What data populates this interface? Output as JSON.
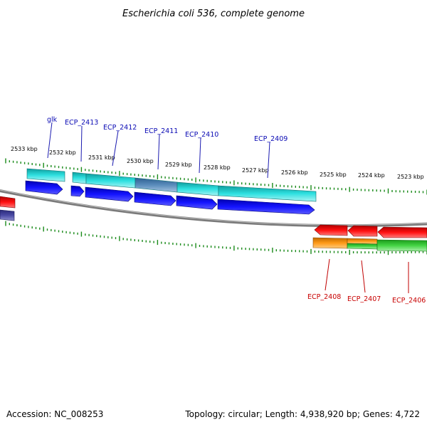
{
  "title": "Escherichia coli 536, complete genome",
  "footer": {
    "accession": "Accession: NC_008253",
    "stats": "Topology: circular; Length: 4,938,920 bp; Genes: 4,722"
  },
  "scale_labels": [
    "2533 kbp",
    "2532 kbp",
    "2531 kbp",
    "2530 kbp",
    "2529 kbp",
    "2528 kbp",
    "2527 kbp",
    "2526 kbp",
    "2525 kbp",
    "2524 kbp",
    "2523 kbp"
  ],
  "forward_genes": [
    "glk",
    "ECP_2413",
    "ECP_2412",
    "ECP_2411",
    "ECP_2410",
    "ECP_2409"
  ],
  "reverse_genes": [
    "ECP_2408",
    "ECP_2407",
    "ECP_2406"
  ],
  "colors": {
    "cds_forward": "#0000ee",
    "gene_forward": "#19c8c8",
    "gene_forward_alt": "#4f7fb4",
    "cds_reverse": "#ee0000",
    "gene_reverse_orange": "#f59012",
    "gene_reverse_green": "#3cc83c",
    "backbone": "#8a8a8a",
    "ticks": "#1a8a1a"
  }
}
